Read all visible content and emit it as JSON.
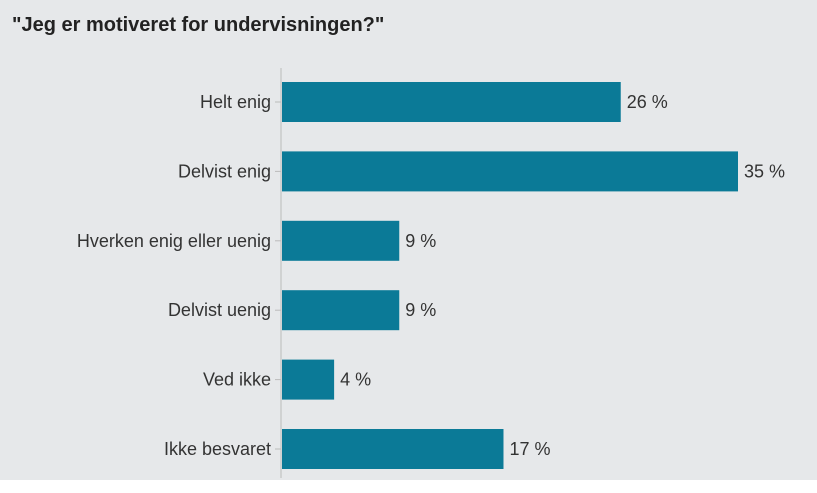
{
  "chart_data": {
    "type": "bar",
    "orientation": "horizontal",
    "title": "\"Jeg er motiveret for undervisningen?\"",
    "categories": [
      "Helt enig",
      "Delvist enig",
      "Hverken enig eller uenig",
      "Delvist uenig",
      "Ved ikke",
      "Ikke besvaret"
    ],
    "values": [
      26,
      35,
      9,
      9,
      4,
      17
    ],
    "value_labels": [
      "26 %",
      "35 %",
      "9 %",
      "9 %",
      "4 %",
      "17 %"
    ],
    "unit": "%",
    "xlim": [
      0,
      35
    ],
    "grid": false,
    "legend": "none",
    "bar_color": "#0b7a97",
    "axis_color": "#bbbbbb",
    "background": "#e6e8ea"
  }
}
